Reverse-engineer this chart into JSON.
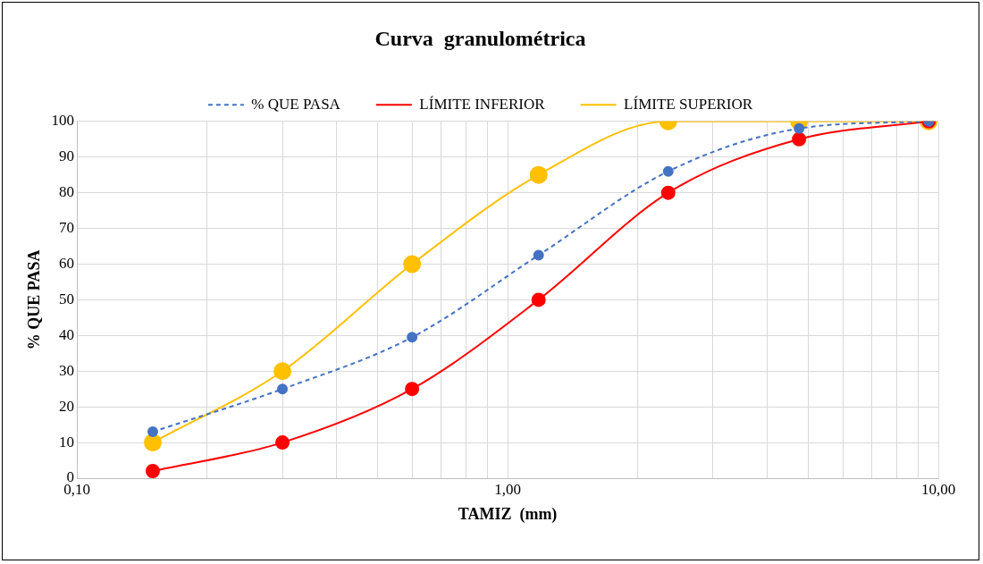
{
  "chart_data": {
    "type": "line",
    "title": "Curva  granulométrica",
    "xlabel": "TAMIZ  (mm)",
    "ylabel": "% QUE PASA",
    "x": [
      0.15,
      0.3,
      0.6,
      1.18,
      2.36,
      4.75,
      9.5
    ],
    "series": [
      {
        "name": "% QUE PASA",
        "color": "#4472c4",
        "line_style": "dashed",
        "values": [
          13,
          25,
          39.5,
          62.5,
          86,
          98,
          100
        ]
      },
      {
        "name": "LÍMITE INFERIOR",
        "color": "#ff0000",
        "line_style": "solid",
        "values": [
          2,
          10,
          25,
          50,
          80,
          95,
          100
        ]
      },
      {
        "name": "LÍMITE SUPERIOR",
        "color": "#ffc000",
        "line_style": "solid",
        "values": [
          10,
          30,
          60,
          85,
          100,
          100,
          100
        ]
      }
    ],
    "log": "x",
    "xlim": [
      0.1,
      10
    ],
    "xticks": [
      {
        "value": 0.1,
        "label": "0,10"
      },
      {
        "value": 0.2,
        "label": null
      },
      {
        "value": 0.3,
        "label": null
      },
      {
        "value": 0.4,
        "label": null
      },
      {
        "value": 0.5,
        "label": null
      },
      {
        "value": 0.6,
        "label": null
      },
      {
        "value": 0.7,
        "label": null
      },
      {
        "value": 0.8,
        "label": null
      },
      {
        "value": 0.9,
        "label": null
      },
      {
        "value": 1,
        "label": "1,00"
      },
      {
        "value": 2,
        "label": null
      },
      {
        "value": 3,
        "label": null
      },
      {
        "value": 4,
        "label": null
      },
      {
        "value": 5,
        "label": null
      },
      {
        "value": 6,
        "label": null
      },
      {
        "value": 7,
        "label": null
      },
      {
        "value": 8,
        "label": null
      },
      {
        "value": 9,
        "label": null
      },
      {
        "value": 10,
        "label": "10,00"
      }
    ],
    "ylim": [
      0,
      100
    ],
    "yticks": [
      0,
      10,
      20,
      30,
      40,
      50,
      60,
      70,
      80,
      90,
      100
    ],
    "grid": true,
    "legend": "top",
    "marker": "circle"
  }
}
